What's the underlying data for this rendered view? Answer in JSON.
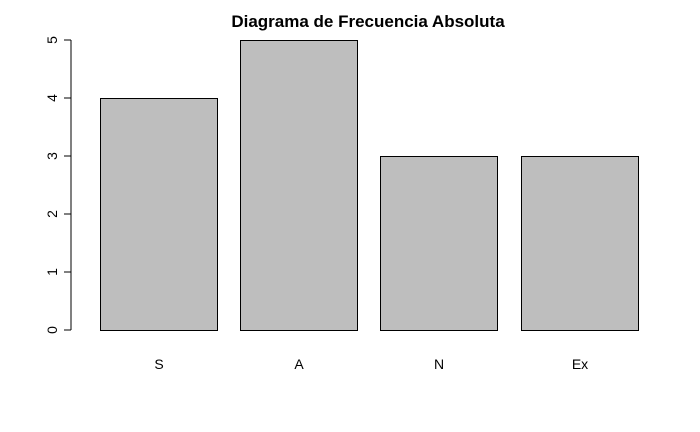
{
  "chart_data": {
    "type": "bar",
    "title": "Diagrama de Frecuencia Absoluta",
    "xlabel": "",
    "ylabel": "",
    "categories": [
      "S",
      "A",
      "N",
      "Ex"
    ],
    "values": [
      4,
      5,
      3,
      3
    ],
    "ylim": [
      0,
      5
    ],
    "yticks": [
      0,
      1,
      2,
      3,
      4,
      5
    ],
    "bar_color": "#bebebe",
    "border_color": "#000000",
    "grid": false,
    "legend": "none"
  }
}
